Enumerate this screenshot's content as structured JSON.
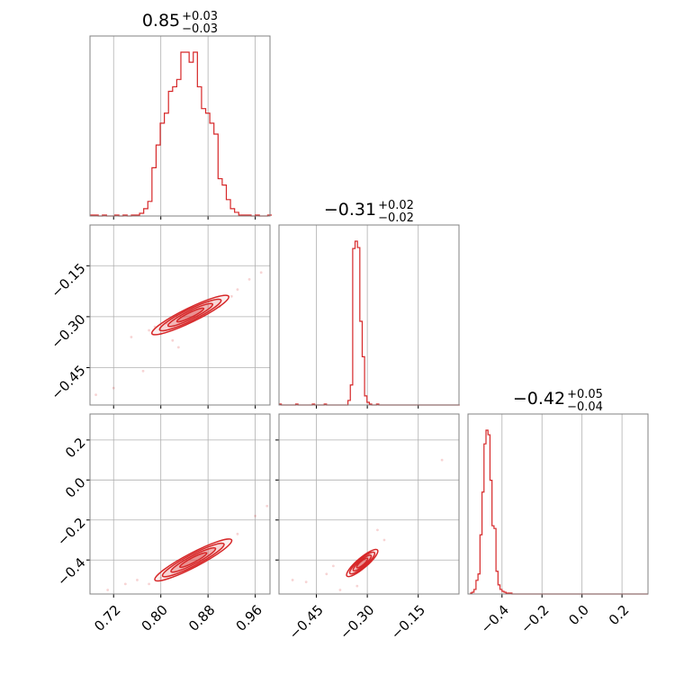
{
  "colors": {
    "series": "#d62728",
    "grid": "#b0b0b0",
    "frame": "#808080"
  },
  "chart_data": {
    "type": "corner",
    "grid": true,
    "parameters": [
      {
        "median": 0.85,
        "lower": 0.03,
        "upper": 0.03,
        "range": [
          0.68,
          0.985
        ]
      },
      {
        "median": -0.31,
        "lower": 0.02,
        "upper": 0.02,
        "range": [
          -0.56,
          -0.03
        ]
      },
      {
        "median": -0.42,
        "lower": 0.04,
        "upper": 0.05,
        "range": [
          -0.57,
          0.33
        ]
      }
    ],
    "titles": [
      {
        "main": "0.85",
        "sup": "+0.03",
        "sub": "−0.03"
      },
      {
        "main": "−0.31",
        "sup": "+0.02",
        "sub": "−0.02"
      },
      {
        "main": "−0.42",
        "sup": "+0.05",
        "sub": "−0.04"
      }
    ],
    "x_ticks": [
      {
        "values": [
          0.72,
          0.8,
          0.88,
          0.96
        ],
        "labels": [
          "0.72",
          "0.80",
          "0.88",
          "0.96"
        ]
      },
      {
        "values": [
          -0.45,
          -0.3,
          -0.15
        ],
        "labels": [
          "−0.45",
          "−0.30",
          "−0.15"
        ]
      },
      {
        "values": [
          -0.4,
          -0.2,
          0.0,
          0.2
        ],
        "labels": [
          "−0.4",
          "−0.2",
          "0.0",
          "0.2"
        ]
      }
    ],
    "y_ticks": {
      "row1": {
        "values": [
          -0.15,
          -0.3,
          -0.45
        ],
        "labels": [
          "−0.15",
          "−0.30",
          "−0.45"
        ]
      },
      "row2": {
        "values": [
          0.2,
          0.0,
          -0.2,
          -0.4
        ],
        "labels": [
          "0.2",
          "0.0",
          "−0.2",
          "−0.4"
        ]
      }
    },
    "histograms": [
      {
        "bin_edges": [
          0.68,
          0.687,
          0.694,
          0.701,
          0.708,
          0.715,
          0.722,
          0.729,
          0.736,
          0.743,
          0.75,
          0.757,
          0.764,
          0.771,
          0.778,
          0.785,
          0.792,
          0.799,
          0.806,
          0.813,
          0.82,
          0.827,
          0.834,
          0.841,
          0.848,
          0.855,
          0.862,
          0.869,
          0.876,
          0.883,
          0.89,
          0.897,
          0.904,
          0.911,
          0.918,
          0.925,
          0.932,
          0.939,
          0.946,
          0.953,
          0.96,
          0.967,
          0.974,
          0.981,
          0.988
        ],
        "counts": [
          1,
          1,
          0,
          1,
          0,
          0,
          1,
          0,
          1,
          0,
          1,
          1,
          3,
          8,
          16,
          53,
          78,
          102,
          113,
          137,
          142,
          150,
          180,
          180,
          169,
          180,
          142,
          118,
          113,
          102,
          90,
          41,
          34,
          18,
          8,
          4,
          1,
          1,
          1,
          0,
          1,
          0,
          0,
          1
        ]
      },
      {
        "bin_edges": [
          -0.56,
          -0.553,
          -0.546,
          -0.539,
          -0.532,
          -0.525,
          -0.518,
          -0.511,
          -0.504,
          -0.497,
          -0.49,
          -0.483,
          -0.476,
          -0.469,
          -0.462,
          -0.455,
          -0.448,
          -0.441,
          -0.434,
          -0.427,
          -0.42,
          -0.413,
          -0.406,
          -0.399,
          -0.392,
          -0.385,
          -0.378,
          -0.371,
          -0.364,
          -0.357,
          -0.35,
          -0.343,
          -0.336,
          -0.329,
          -0.322,
          -0.315,
          -0.308,
          -0.301,
          -0.294,
          -0.287,
          -0.28,
          -0.273,
          -0.266,
          -0.259,
          -0.252,
          -0.245,
          -0.238,
          -0.231,
          -0.224,
          -0.217,
          -0.21,
          -0.203,
          -0.196,
          -0.189,
          -0.182,
          -0.175,
          -0.168,
          -0.161,
          -0.154,
          -0.147,
          -0.14,
          -0.133,
          -0.126,
          -0.119,
          -0.112,
          -0.105,
          -0.098,
          -0.091,
          -0.084,
          -0.077,
          -0.07,
          -0.063,
          -0.056,
          -0.049,
          -0.042,
          -0.035,
          -0.028
        ],
        "counts": [
          1,
          0,
          0,
          0,
          0,
          0,
          0,
          1,
          0,
          0,
          0,
          0,
          0,
          0,
          1,
          0,
          0,
          0,
          0,
          1,
          0,
          0,
          0,
          0,
          0,
          0,
          0,
          0,
          0,
          5,
          22,
          172,
          180,
          173,
          92,
          53,
          10,
          3,
          1,
          0,
          0,
          1,
          0,
          0,
          0,
          0,
          0,
          0,
          0,
          0,
          0,
          0,
          0,
          0,
          0,
          0,
          0,
          0,
          0,
          0,
          0,
          0,
          0,
          0,
          0,
          0,
          0,
          0,
          0,
          0,
          0,
          0,
          0,
          0,
          0,
          0
        ]
      },
      {
        "bin_edges": [
          -0.56,
          -0.55,
          -0.54,
          -0.53,
          -0.52,
          -0.51,
          -0.5,
          -0.49,
          -0.48,
          -0.47,
          -0.46,
          -0.45,
          -0.44,
          -0.43,
          -0.42,
          -0.41,
          -0.4,
          -0.39,
          -0.38,
          -0.37,
          -0.36,
          -0.35,
          -0.34,
          -0.33,
          -0.32,
          -0.31,
          -0.3,
          -0.29,
          -0.28,
          -0.27,
          -0.26,
          -0.25,
          -0.24,
          -0.23,
          -0.22,
          -0.21,
          -0.2,
          -0.19,
          -0.18,
          -0.17,
          -0.16,
          -0.15,
          -0.14,
          -0.13,
          -0.12,
          -0.11,
          -0.1,
          -0.09,
          -0.08,
          -0.07,
          -0.06,
          -0.05,
          -0.04,
          -0.03,
          -0.02,
          -0.01,
          0.0,
          0.01,
          0.02,
          0.03,
          0.04,
          0.05,
          0.06,
          0.07,
          0.08,
          0.09,
          0.1,
          0.11,
          0.12,
          0.13,
          0.14,
          0.15,
          0.16,
          0.17,
          0.18,
          0.19,
          0.2,
          0.21,
          0.22,
          0.23,
          0.24,
          0.25,
          0.26,
          0.27,
          0.28,
          0.29,
          0.3,
          0.31,
          0.32,
          0.33
        ],
        "counts": [
          1,
          2,
          5,
          15,
          22,
          65,
          112,
          165,
          180,
          175,
          125,
          75,
          72,
          25,
          10,
          5,
          3,
          2,
          1,
          1,
          1,
          0,
          0,
          0,
          0,
          0,
          0,
          0,
          0,
          0,
          0,
          0,
          0,
          0,
          0,
          0,
          0,
          0,
          0,
          0,
          0,
          0,
          0,
          0,
          0,
          0,
          0,
          0,
          0,
          0,
          0,
          0,
          0,
          0,
          0,
          0,
          0,
          0,
          0,
          0,
          0,
          0,
          0,
          0,
          0,
          0,
          0,
          0,
          0,
          0,
          0,
          0,
          0,
          0,
          0,
          0,
          0,
          0,
          0,
          0,
          0,
          0,
          0,
          0,
          0,
          0,
          0,
          0,
          0
        ]
      }
    ],
    "pairs": [
      {
        "x_param": 0,
        "y_param": 1,
        "correlation_line": [
          [
            0.785,
            -0.35
          ],
          [
            0.915,
            -0.24
          ]
        ],
        "contour_width": 0.012,
        "scatter": [
          [
            0.69,
            -0.53
          ],
          [
            0.72,
            -0.51
          ],
          [
            0.77,
            -0.46
          ],
          [
            0.75,
            -0.36
          ],
          [
            0.78,
            -0.34
          ],
          [
            0.79,
            -0.33
          ],
          [
            0.8,
            -0.35
          ],
          [
            0.82,
            -0.37
          ],
          [
            0.83,
            -0.39
          ],
          [
            0.93,
            -0.22
          ],
          [
            0.95,
            -0.19
          ],
          [
            0.97,
            -0.17
          ],
          [
            0.81,
            -0.32
          ],
          [
            0.9,
            -0.27
          ],
          [
            0.92,
            -0.24
          ]
        ]
      },
      {
        "x_param": 0,
        "y_param": 2,
        "correlation_line": [
          [
            0.79,
            -0.5
          ],
          [
            0.92,
            -0.3
          ]
        ],
        "contour_width": 0.012,
        "scatter": [
          [
            0.71,
            -0.55
          ],
          [
            0.74,
            -0.52
          ],
          [
            0.76,
            -0.5
          ],
          [
            0.78,
            -0.52
          ],
          [
            0.96,
            -0.18
          ],
          [
            0.98,
            -0.13
          ],
          [
            0.93,
            -0.27
          ],
          [
            0.8,
            -0.49
          ]
        ]
      },
      {
        "x_param": 1,
        "y_param": 2,
        "correlation_line": [
          [
            -0.36,
            -0.48
          ],
          [
            -0.27,
            -0.35
          ]
        ],
        "contour_width": 0.015,
        "scatter": [
          [
            -0.52,
            -0.5
          ],
          [
            -0.48,
            -0.51
          ],
          [
            -0.42,
            -0.47
          ],
          [
            -0.38,
            -0.55
          ],
          [
            -0.33,
            -0.53
          ],
          [
            -0.27,
            -0.25
          ],
          [
            -0.25,
            -0.3
          ],
          [
            -0.08,
            0.1
          ],
          [
            -0.4,
            -0.43
          ]
        ]
      }
    ]
  }
}
